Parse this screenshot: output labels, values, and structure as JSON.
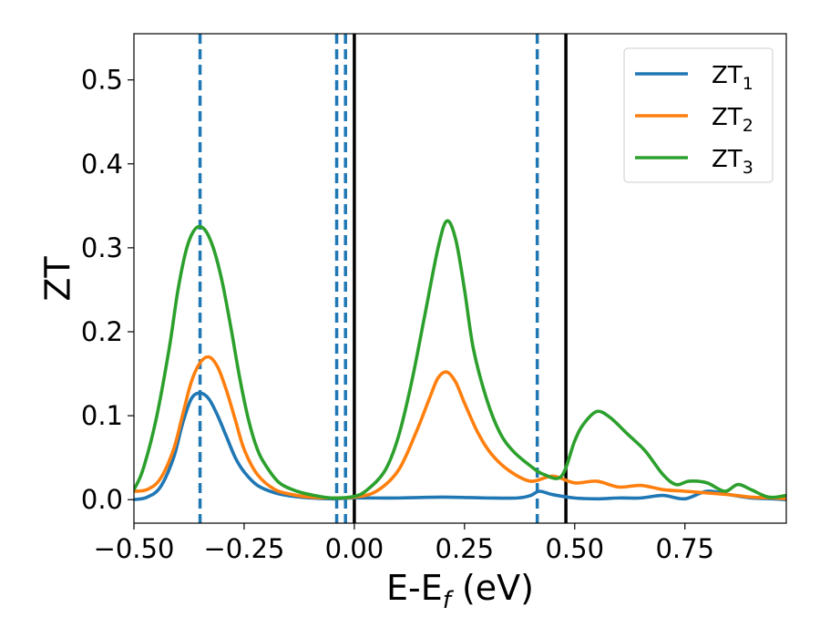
{
  "chart_data": {
    "type": "line",
    "xlabel": {
      "main": "E-E",
      "sub": "f",
      "suffix": " (eV)"
    },
    "ylabel": "ZT",
    "xlim": [
      -0.5,
      0.98
    ],
    "ylim": [
      -0.028,
      0.555
    ],
    "xticks": [
      {
        "value": -0.5,
        "label": "−0.50"
      },
      {
        "value": -0.25,
        "label": "−0.25"
      },
      {
        "value": 0.0,
        "label": "0.00"
      },
      {
        "value": 0.25,
        "label": "0.25"
      },
      {
        "value": 0.5,
        "label": "0.50"
      },
      {
        "value": 0.75,
        "label": "0.75"
      }
    ],
    "yticks": [
      {
        "value": 0.0,
        "label": "0.0"
      },
      {
        "value": 0.1,
        "label": "0.1"
      },
      {
        "value": 0.2,
        "label": "0.2"
      },
      {
        "value": 0.3,
        "label": "0.3"
      },
      {
        "value": 0.4,
        "label": "0.4"
      },
      {
        "value": 0.5,
        "label": "0.5"
      }
    ],
    "grid": false,
    "legend_position": "top-right",
    "series": [
      {
        "name": "ZT",
        "sub": "1",
        "color": "#1f77b4",
        "x": [
          -0.5,
          -0.47,
          -0.44,
          -0.41,
          -0.39,
          -0.37,
          -0.35,
          -0.33,
          -0.31,
          -0.29,
          -0.27,
          -0.25,
          -0.22,
          -0.18,
          -0.14,
          -0.1,
          -0.05,
          0.0,
          0.1,
          0.2,
          0.3,
          0.37,
          0.4,
          0.42,
          0.45,
          0.5,
          0.55,
          0.6,
          0.65,
          0.7,
          0.75,
          0.8,
          0.85,
          0.9,
          0.95,
          0.98
        ],
        "y": [
          0.0,
          0.003,
          0.015,
          0.05,
          0.09,
          0.12,
          0.127,
          0.12,
          0.1,
          0.075,
          0.05,
          0.033,
          0.017,
          0.008,
          0.004,
          0.002,
          0.001,
          0.002,
          0.002,
          0.003,
          0.002,
          0.002,
          0.005,
          0.01,
          0.006,
          0.002,
          0.001,
          0.002,
          0.002,
          0.005,
          0.001,
          0.01,
          0.006,
          0.002,
          0.001,
          0.0
        ]
      },
      {
        "name": "ZT",
        "sub": "2",
        "color": "#ff7f0e",
        "x": [
          -0.5,
          -0.47,
          -0.44,
          -0.41,
          -0.39,
          -0.37,
          -0.35,
          -0.33,
          -0.31,
          -0.29,
          -0.27,
          -0.25,
          -0.22,
          -0.18,
          -0.14,
          -0.1,
          -0.05,
          0.0,
          0.05,
          0.1,
          0.14,
          0.17,
          0.19,
          0.21,
          0.23,
          0.25,
          0.28,
          0.31,
          0.35,
          0.4,
          0.45,
          0.5,
          0.55,
          0.6,
          0.65,
          0.7,
          0.75,
          0.8,
          0.85,
          0.9,
          0.95,
          0.98
        ],
        "y": [
          0.01,
          0.012,
          0.025,
          0.06,
          0.1,
          0.14,
          0.163,
          0.17,
          0.158,
          0.13,
          0.095,
          0.06,
          0.03,
          0.012,
          0.006,
          0.003,
          0.002,
          0.003,
          0.01,
          0.035,
          0.08,
          0.12,
          0.145,
          0.152,
          0.14,
          0.115,
          0.08,
          0.055,
          0.035,
          0.022,
          0.028,
          0.02,
          0.022,
          0.015,
          0.017,
          0.012,
          0.01,
          0.008,
          0.006,
          0.003,
          0.002,
          0.001
        ]
      },
      {
        "name": "ZT",
        "sub": "3",
        "color": "#2ca02c",
        "x": [
          -0.5,
          -0.48,
          -0.45,
          -0.42,
          -0.4,
          -0.38,
          -0.36,
          -0.34,
          -0.32,
          -0.3,
          -0.28,
          -0.26,
          -0.24,
          -0.22,
          -0.2,
          -0.17,
          -0.13,
          -0.09,
          -0.05,
          0.0,
          0.03,
          0.07,
          0.1,
          0.13,
          0.16,
          0.19,
          0.21,
          0.23,
          0.25,
          0.27,
          0.3,
          0.33,
          0.36,
          0.4,
          0.43,
          0.47,
          0.5,
          0.52,
          0.55,
          0.58,
          0.62,
          0.66,
          0.7,
          0.73,
          0.76,
          0.8,
          0.84,
          0.87,
          0.9,
          0.94,
          0.98
        ],
        "y": [
          0.012,
          0.035,
          0.095,
          0.18,
          0.25,
          0.3,
          0.323,
          0.322,
          0.3,
          0.26,
          0.205,
          0.145,
          0.095,
          0.06,
          0.04,
          0.02,
          0.01,
          0.005,
          0.002,
          0.004,
          0.012,
          0.035,
          0.075,
          0.14,
          0.22,
          0.3,
          0.332,
          0.31,
          0.25,
          0.18,
          0.12,
          0.08,
          0.058,
          0.04,
          0.03,
          0.028,
          0.07,
          0.09,
          0.105,
          0.098,
          0.078,
          0.058,
          0.03,
          0.018,
          0.022,
          0.02,
          0.01,
          0.018,
          0.012,
          0.003,
          0.005
        ]
      }
    ],
    "vlines": [
      {
        "x": -0.35,
        "color": "#1f77b4",
        "style": "dashed"
      },
      {
        "x": -0.04,
        "color": "#1f77b4",
        "style": "dashed"
      },
      {
        "x": -0.02,
        "color": "#1f77b4",
        "style": "dashed"
      },
      {
        "x": 0.0,
        "color": "#000000",
        "style": "solid"
      },
      {
        "x": 0.415,
        "color": "#1f77b4",
        "style": "dashed"
      },
      {
        "x": 0.48,
        "color": "#000000",
        "style": "solid"
      }
    ]
  }
}
